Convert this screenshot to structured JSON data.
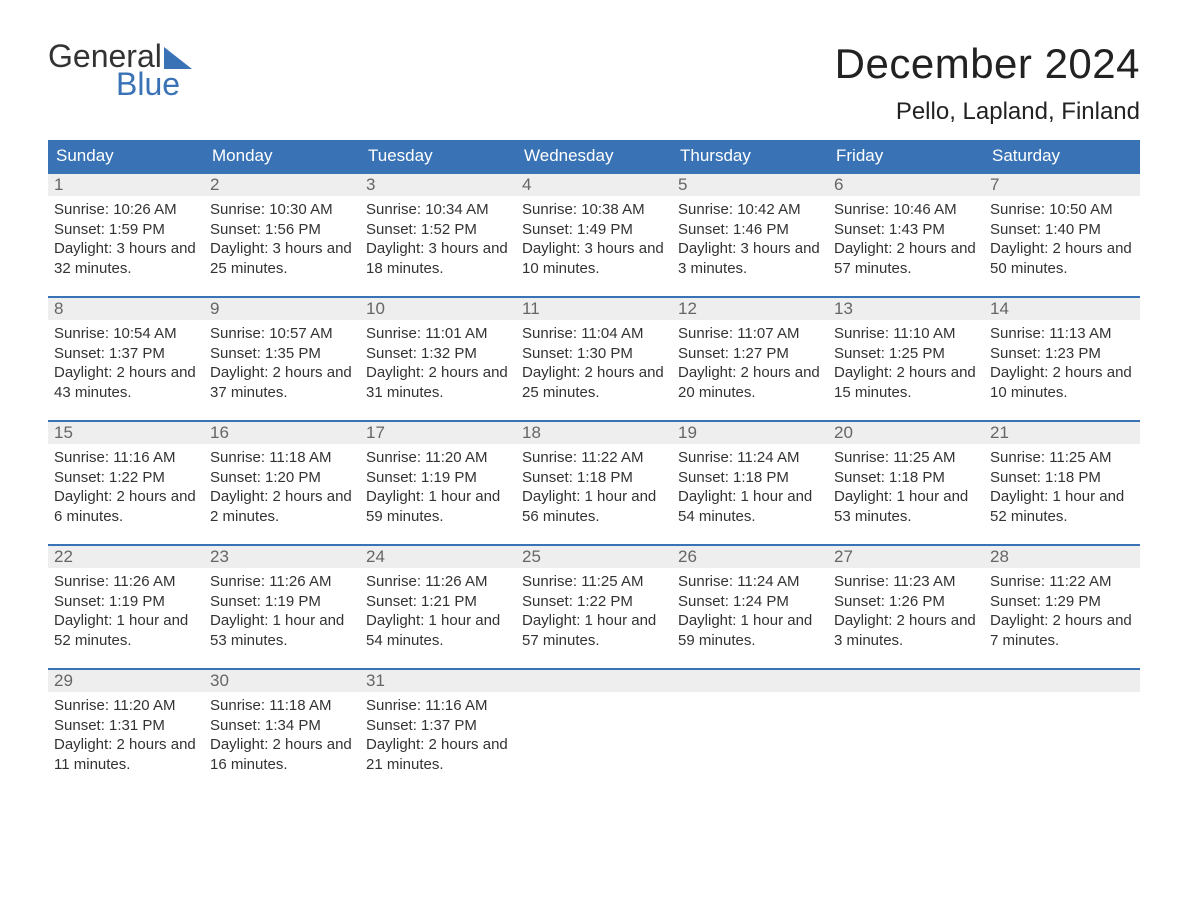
{
  "logo": {
    "top": "General",
    "bottom": "Blue"
  },
  "title": "December 2024",
  "location": "Pello, Lapland, Finland",
  "colors": {
    "brand_blue": "#3973b5",
    "header_text": "#ffffff",
    "daynum_bg": "#eeeeee",
    "daynum_text": "#666666",
    "body_bg": "#ffffff",
    "text": "#333333"
  },
  "layout": {
    "columns": 7,
    "weeks": 5,
    "week_border_color": "#3973b5"
  },
  "weekdays": [
    "Sunday",
    "Monday",
    "Tuesday",
    "Wednesday",
    "Thursday",
    "Friday",
    "Saturday"
  ],
  "weeks": [
    [
      {
        "num": "1",
        "sunrise": "Sunrise: 10:26 AM",
        "sunset": "Sunset: 1:59 PM",
        "daylight": "Daylight: 3 hours and 32 minutes."
      },
      {
        "num": "2",
        "sunrise": "Sunrise: 10:30 AM",
        "sunset": "Sunset: 1:56 PM",
        "daylight": "Daylight: 3 hours and 25 minutes."
      },
      {
        "num": "3",
        "sunrise": "Sunrise: 10:34 AM",
        "sunset": "Sunset: 1:52 PM",
        "daylight": "Daylight: 3 hours and 18 minutes."
      },
      {
        "num": "4",
        "sunrise": "Sunrise: 10:38 AM",
        "sunset": "Sunset: 1:49 PM",
        "daylight": "Daylight: 3 hours and 10 minutes."
      },
      {
        "num": "5",
        "sunrise": "Sunrise: 10:42 AM",
        "sunset": "Sunset: 1:46 PM",
        "daylight": "Daylight: 3 hours and 3 minutes."
      },
      {
        "num": "6",
        "sunrise": "Sunrise: 10:46 AM",
        "sunset": "Sunset: 1:43 PM",
        "daylight": "Daylight: 2 hours and 57 minutes."
      },
      {
        "num": "7",
        "sunrise": "Sunrise: 10:50 AM",
        "sunset": "Sunset: 1:40 PM",
        "daylight": "Daylight: 2 hours and 50 minutes."
      }
    ],
    [
      {
        "num": "8",
        "sunrise": "Sunrise: 10:54 AM",
        "sunset": "Sunset: 1:37 PM",
        "daylight": "Daylight: 2 hours and 43 minutes."
      },
      {
        "num": "9",
        "sunrise": "Sunrise: 10:57 AM",
        "sunset": "Sunset: 1:35 PM",
        "daylight": "Daylight: 2 hours and 37 minutes."
      },
      {
        "num": "10",
        "sunrise": "Sunrise: 11:01 AM",
        "sunset": "Sunset: 1:32 PM",
        "daylight": "Daylight: 2 hours and 31 minutes."
      },
      {
        "num": "11",
        "sunrise": "Sunrise: 11:04 AM",
        "sunset": "Sunset: 1:30 PM",
        "daylight": "Daylight: 2 hours and 25 minutes."
      },
      {
        "num": "12",
        "sunrise": "Sunrise: 11:07 AM",
        "sunset": "Sunset: 1:27 PM",
        "daylight": "Daylight: 2 hours and 20 minutes."
      },
      {
        "num": "13",
        "sunrise": "Sunrise: 11:10 AM",
        "sunset": "Sunset: 1:25 PM",
        "daylight": "Daylight: 2 hours and 15 minutes."
      },
      {
        "num": "14",
        "sunrise": "Sunrise: 11:13 AM",
        "sunset": "Sunset: 1:23 PM",
        "daylight": "Daylight: 2 hours and 10 minutes."
      }
    ],
    [
      {
        "num": "15",
        "sunrise": "Sunrise: 11:16 AM",
        "sunset": "Sunset: 1:22 PM",
        "daylight": "Daylight: 2 hours and 6 minutes."
      },
      {
        "num": "16",
        "sunrise": "Sunrise: 11:18 AM",
        "sunset": "Sunset: 1:20 PM",
        "daylight": "Daylight: 2 hours and 2 minutes."
      },
      {
        "num": "17",
        "sunrise": "Sunrise: 11:20 AM",
        "sunset": "Sunset: 1:19 PM",
        "daylight": "Daylight: 1 hour and 59 minutes."
      },
      {
        "num": "18",
        "sunrise": "Sunrise: 11:22 AM",
        "sunset": "Sunset: 1:18 PM",
        "daylight": "Daylight: 1 hour and 56 minutes."
      },
      {
        "num": "19",
        "sunrise": "Sunrise: 11:24 AM",
        "sunset": "Sunset: 1:18 PM",
        "daylight": "Daylight: 1 hour and 54 minutes."
      },
      {
        "num": "20",
        "sunrise": "Sunrise: 11:25 AM",
        "sunset": "Sunset: 1:18 PM",
        "daylight": "Daylight: 1 hour and 53 minutes."
      },
      {
        "num": "21",
        "sunrise": "Sunrise: 11:25 AM",
        "sunset": "Sunset: 1:18 PM",
        "daylight": "Daylight: 1 hour and 52 minutes."
      }
    ],
    [
      {
        "num": "22",
        "sunrise": "Sunrise: 11:26 AM",
        "sunset": "Sunset: 1:19 PM",
        "daylight": "Daylight: 1 hour and 52 minutes."
      },
      {
        "num": "23",
        "sunrise": "Sunrise: 11:26 AM",
        "sunset": "Sunset: 1:19 PM",
        "daylight": "Daylight: 1 hour and 53 minutes."
      },
      {
        "num": "24",
        "sunrise": "Sunrise: 11:26 AM",
        "sunset": "Sunset: 1:21 PM",
        "daylight": "Daylight: 1 hour and 54 minutes."
      },
      {
        "num": "25",
        "sunrise": "Sunrise: 11:25 AM",
        "sunset": "Sunset: 1:22 PM",
        "daylight": "Daylight: 1 hour and 57 minutes."
      },
      {
        "num": "26",
        "sunrise": "Sunrise: 11:24 AM",
        "sunset": "Sunset: 1:24 PM",
        "daylight": "Daylight: 1 hour and 59 minutes."
      },
      {
        "num": "27",
        "sunrise": "Sunrise: 11:23 AM",
        "sunset": "Sunset: 1:26 PM",
        "daylight": "Daylight: 2 hours and 3 minutes."
      },
      {
        "num": "28",
        "sunrise": "Sunrise: 11:22 AM",
        "sunset": "Sunset: 1:29 PM",
        "daylight": "Daylight: 2 hours and 7 minutes."
      }
    ],
    [
      {
        "num": "29",
        "sunrise": "Sunrise: 11:20 AM",
        "sunset": "Sunset: 1:31 PM",
        "daylight": "Daylight: 2 hours and 11 minutes."
      },
      {
        "num": "30",
        "sunrise": "Sunrise: 11:18 AM",
        "sunset": "Sunset: 1:34 PM",
        "daylight": "Daylight: 2 hours and 16 minutes."
      },
      {
        "num": "31",
        "sunrise": "Sunrise: 11:16 AM",
        "sunset": "Sunset: 1:37 PM",
        "daylight": "Daylight: 2 hours and 21 minutes."
      },
      null,
      null,
      null,
      null
    ]
  ]
}
